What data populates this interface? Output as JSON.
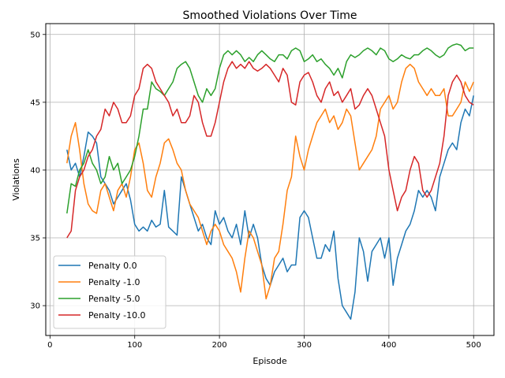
{
  "chart_data": {
    "type": "line",
    "title": "Smoothed Violations Over Time",
    "xlabel": "Episode",
    "ylabel": "Violations",
    "xlim": [
      -5,
      524
    ],
    "ylim": [
      27.8,
      50.8
    ],
    "xticks": [
      0,
      100,
      200,
      300,
      400,
      500
    ],
    "yticks": [
      30,
      35,
      40,
      45,
      50
    ],
    "grid": true,
    "legend_position": "lower-left",
    "series": [
      {
        "name": "Penalty 0.0",
        "color": "#1f77b4",
        "x": [
          20,
          25,
          30,
          35,
          40,
          45,
          50,
          55,
          60,
          65,
          70,
          75,
          80,
          85,
          90,
          95,
          100,
          105,
          110,
          115,
          120,
          125,
          130,
          135,
          140,
          145,
          150,
          155,
          160,
          165,
          170,
          175,
          180,
          185,
          190,
          195,
          200,
          205,
          210,
          215,
          220,
          225,
          230,
          235,
          240,
          245,
          250,
          255,
          260,
          265,
          270,
          275,
          280,
          285,
          290,
          295,
          300,
          305,
          310,
          315,
          320,
          325,
          330,
          335,
          340,
          345,
          350,
          355,
          360,
          365,
          370,
          375,
          380,
          385,
          390,
          395,
          400,
          405,
          410,
          415,
          420,
          425,
          430,
          435,
          440,
          445,
          450,
          455,
          460,
          465,
          470,
          475,
          480,
          485,
          490,
          495,
          500
        ],
        "y": [
          41.5,
          40.0,
          40.5,
          39.5,
          41.0,
          42.8,
          42.5,
          42.0,
          39.5,
          39.0,
          38.5,
          37.5,
          38.0,
          38.5,
          39.0,
          37.8,
          36.0,
          35.5,
          35.8,
          35.5,
          36.3,
          35.8,
          36.0,
          38.5,
          35.8,
          35.5,
          35.2,
          39.5,
          38.5,
          37.5,
          36.5,
          35.5,
          36.0,
          35.0,
          34.5,
          37.0,
          36.0,
          36.5,
          35.5,
          35.0,
          36.0,
          34.5,
          37.0,
          35.0,
          36.0,
          35.0,
          33.0,
          32.0,
          31.5,
          32.5,
          33.0,
          33.5,
          32.5,
          33.0,
          33.0,
          36.5,
          37.0,
          36.5,
          35.0,
          33.5,
          33.5,
          34.5,
          34.0,
          35.5,
          32.0,
          30.0,
          29.5,
          29.0,
          31.0,
          35.0,
          34.0,
          31.8,
          34.0,
          34.5,
          35.0,
          33.5,
          35.0,
          31.5,
          33.5,
          34.5,
          35.5,
          36.0,
          37.0,
          38.5,
          38.0,
          38.5,
          38.0,
          37.0,
          39.5,
          40.5,
          41.5,
          42.0,
          41.5,
          43.5,
          44.5,
          44.0,
          45.5
        ]
      },
      {
        "name": "Penalty -1.0",
        "color": "#ff7f0e",
        "x": [
          20,
          25,
          30,
          35,
          40,
          45,
          50,
          55,
          60,
          65,
          70,
          75,
          80,
          85,
          90,
          95,
          100,
          105,
          110,
          115,
          120,
          125,
          130,
          135,
          140,
          145,
          150,
          155,
          160,
          165,
          170,
          175,
          180,
          185,
          190,
          195,
          200,
          205,
          210,
          215,
          220,
          225,
          230,
          235,
          240,
          245,
          250,
          255,
          260,
          265,
          270,
          275,
          280,
          285,
          290,
          295,
          300,
          305,
          310,
          315,
          320,
          325,
          330,
          335,
          340,
          345,
          350,
          355,
          360,
          365,
          370,
          375,
          380,
          385,
          390,
          395,
          400,
          405,
          410,
          415,
          420,
          425,
          430,
          435,
          440,
          445,
          450,
          455,
          460,
          465,
          470,
          475,
          480,
          485,
          490,
          495,
          500
        ],
        "y": [
          40.5,
          42.5,
          43.5,
          41.5,
          39.0,
          37.5,
          37.0,
          36.8,
          38.5,
          39.0,
          38.0,
          37.0,
          38.5,
          39.0,
          38.0,
          39.5,
          41.5,
          42.0,
          40.5,
          38.5,
          38.0,
          39.5,
          40.5,
          42.0,
          42.3,
          41.5,
          40.5,
          40.0,
          38.5,
          37.5,
          37.0,
          36.5,
          35.5,
          34.5,
          35.5,
          36.0,
          35.5,
          34.5,
          34.0,
          33.5,
          32.5,
          31.0,
          33.5,
          35.5,
          35.0,
          34.0,
          33.0,
          30.5,
          31.5,
          33.5,
          34.0,
          36.0,
          38.5,
          39.5,
          42.5,
          41.0,
          40.0,
          41.5,
          42.5,
          43.5,
          44.0,
          44.5,
          43.5,
          44.0,
          43.0,
          43.5,
          44.5,
          44.0,
          42.0,
          40.0,
          40.5,
          41.0,
          41.5,
          42.5,
          44.5,
          45.0,
          45.5,
          44.5,
          45.0,
          46.5,
          47.5,
          47.8,
          47.5,
          46.5,
          46.0,
          45.5,
          46.0,
          45.5,
          45.5,
          46.0,
          44.0,
          44.0,
          44.5,
          45.0,
          46.5,
          45.8,
          46.5
        ]
      },
      {
        "name": "Penalty -5.0",
        "color": "#2ca02c",
        "x": [
          20,
          25,
          30,
          35,
          40,
          45,
          50,
          55,
          60,
          65,
          70,
          75,
          80,
          85,
          90,
          95,
          100,
          105,
          110,
          115,
          120,
          125,
          130,
          135,
          140,
          145,
          150,
          155,
          160,
          165,
          170,
          175,
          180,
          185,
          190,
          195,
          200,
          205,
          210,
          215,
          220,
          225,
          230,
          235,
          240,
          245,
          250,
          255,
          260,
          265,
          270,
          275,
          280,
          285,
          290,
          295,
          300,
          305,
          310,
          315,
          320,
          325,
          330,
          335,
          340,
          345,
          350,
          355,
          360,
          365,
          370,
          375,
          380,
          385,
          390,
          395,
          400,
          405,
          410,
          415,
          420,
          425,
          430,
          435,
          440,
          445,
          450,
          455,
          460,
          465,
          470,
          475,
          480,
          485,
          490,
          495,
          500
        ],
        "y": [
          36.8,
          39.0,
          38.8,
          40.0,
          40.5,
          41.5,
          40.5,
          40.0,
          39.0,
          39.5,
          41.0,
          40.0,
          40.5,
          39.0,
          39.5,
          40.0,
          41.0,
          42.5,
          44.5,
          44.5,
          46.5,
          46.0,
          45.8,
          45.5,
          46.0,
          46.5,
          47.5,
          47.8,
          48.0,
          47.5,
          46.5,
          45.5,
          45.0,
          46.0,
          45.5,
          46.0,
          47.5,
          48.5,
          48.8,
          48.5,
          48.8,
          48.5,
          48.0,
          48.3,
          48.0,
          48.5,
          48.8,
          48.5,
          48.2,
          48.0,
          48.5,
          48.5,
          48.2,
          48.8,
          49.0,
          48.8,
          48.0,
          48.2,
          48.5,
          48.0,
          48.2,
          47.8,
          47.5,
          47.0,
          47.5,
          46.8,
          48.0,
          48.5,
          48.3,
          48.5,
          48.8,
          49.0,
          48.8,
          48.5,
          49.0,
          48.8,
          48.2,
          48.0,
          48.2,
          48.5,
          48.3,
          48.2,
          48.5,
          48.5,
          48.8,
          49.0,
          48.8,
          48.5,
          48.3,
          48.5,
          49.0,
          49.2,
          49.3,
          49.2,
          48.8,
          49.0,
          49.0
        ]
      },
      {
        "name": "Penalty -10.0",
        "color": "#d62728",
        "x": [
          20,
          25,
          30,
          35,
          40,
          45,
          50,
          55,
          60,
          65,
          70,
          75,
          80,
          85,
          90,
          95,
          100,
          105,
          110,
          115,
          120,
          125,
          130,
          135,
          140,
          145,
          150,
          155,
          160,
          165,
          170,
          175,
          180,
          185,
          190,
          195,
          200,
          205,
          210,
          215,
          220,
          225,
          230,
          235,
          240,
          245,
          250,
          255,
          260,
          265,
          270,
          275,
          280,
          285,
          290,
          295,
          300,
          305,
          310,
          315,
          320,
          325,
          330,
          335,
          340,
          345,
          350,
          355,
          360,
          365,
          370,
          375,
          380,
          385,
          390,
          395,
          400,
          405,
          410,
          415,
          420,
          425,
          430,
          435,
          440,
          445,
          450,
          455,
          460,
          465,
          470,
          475,
          480,
          485,
          490,
          495,
          500
        ],
        "y": [
          35.0,
          35.5,
          38.5,
          39.5,
          40.0,
          41.0,
          41.5,
          42.5,
          43.0,
          44.5,
          44.0,
          45.0,
          44.5,
          43.5,
          43.5,
          44.0,
          45.5,
          46.0,
          47.5,
          47.8,
          47.5,
          46.5,
          46.0,
          45.5,
          45.0,
          44.0,
          44.5,
          43.5,
          43.5,
          44.0,
          45.5,
          45.0,
          43.5,
          42.5,
          42.5,
          43.5,
          45.0,
          46.5,
          47.5,
          48.0,
          47.5,
          47.8,
          47.5,
          48.0,
          47.5,
          47.3,
          47.5,
          47.8,
          47.5,
          47.0,
          46.5,
          47.5,
          47.0,
          45.0,
          44.8,
          46.5,
          47.0,
          47.2,
          46.5,
          45.5,
          45.0,
          46.0,
          46.5,
          45.5,
          45.8,
          45.0,
          45.5,
          46.0,
          44.5,
          44.8,
          45.5,
          46.0,
          45.5,
          44.5,
          43.5,
          42.5,
          40.0,
          38.5,
          37.0,
          38.0,
          38.5,
          40.0,
          41.0,
          40.5,
          38.5,
          38.0,
          38.5,
          39.5,
          40.5,
          42.5,
          45.5,
          46.5,
          47.0,
          46.5,
          45.5,
          45.0,
          44.8
        ]
      }
    ]
  }
}
